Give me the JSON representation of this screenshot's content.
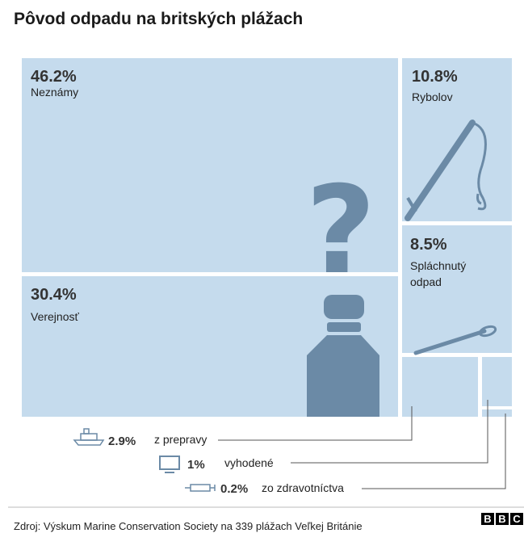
{
  "title": "Pôvod odpadu na britských plážach",
  "chart_data": {
    "type": "treemap",
    "title": "Pôvod odpadu na britských plážach",
    "unit": "%",
    "items": [
      {
        "key": "unknown",
        "label": "Neznámy",
        "value": 46.2,
        "value_text": "46.2%",
        "icon": "question-mark-icon"
      },
      {
        "key": "public",
        "label": "Verejnosť",
        "value": 30.4,
        "value_text": "30.4%",
        "icon": "bottle-icon"
      },
      {
        "key": "fishing",
        "label": "Rybolov",
        "value": 10.8,
        "value_text": "10.8%",
        "icon": "fishing-rod-icon"
      },
      {
        "key": "flushed",
        "label": "Spláchnutý odpad",
        "label_lines": [
          "Spláchnutý",
          "odpad"
        ],
        "value": 8.5,
        "value_text": "8.5%",
        "icon": "cotton-bud-icon"
      },
      {
        "key": "shipping",
        "label": "z prepravy",
        "value": 2.9,
        "value_text": "2.9%",
        "icon": "ship-icon"
      },
      {
        "key": "fly_tipped",
        "label": "vyhodené",
        "value": 1,
        "value_text": "1%",
        "icon": "monitor-icon"
      },
      {
        "key": "medical",
        "label": "zo zdravotníctva",
        "value": 0.2,
        "value_text": "0.2%",
        "icon": "syringe-icon"
      }
    ]
  },
  "colors": {
    "tile": "#c5dbed",
    "icon": "#6b8aa6",
    "text": "#333333",
    "leader": "#555555",
    "rule": "#bbbbbb"
  },
  "source": "Zdroj: Výskum Marine Conservation Society na 339 plážach Veľkej Británie",
  "logo": {
    "text": "BBC",
    "letters": [
      "B",
      "B",
      "C"
    ]
  }
}
